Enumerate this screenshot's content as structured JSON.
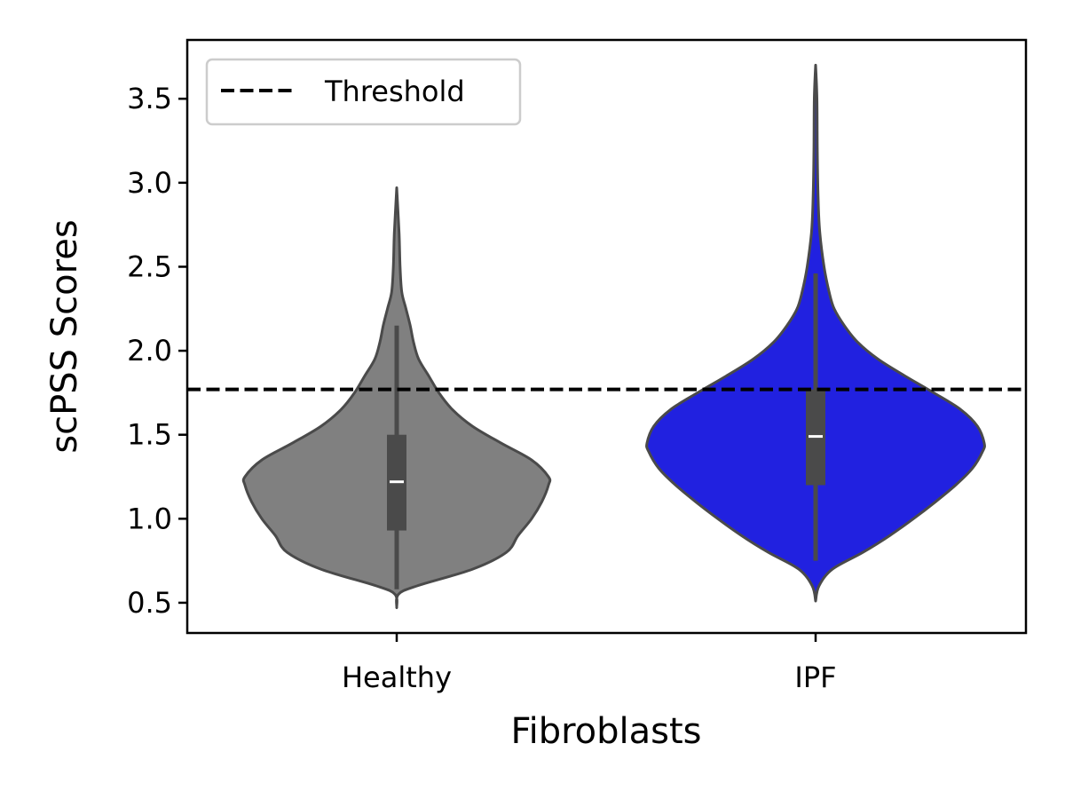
{
  "chart_data": {
    "type": "violin",
    "xlabel": "Fibroblasts",
    "ylabel": "scPSS Scores",
    "categories": [
      "Healthy",
      "IPF"
    ],
    "ylim": [
      0.32,
      3.85
    ],
    "yticks": [
      0.5,
      1.0,
      1.5,
      2.0,
      2.5,
      3.0,
      3.5
    ],
    "ytick_labels": [
      "0.5",
      "1.0",
      "1.5",
      "2.0",
      "2.5",
      "3.0",
      "3.5"
    ],
    "threshold": 1.77,
    "legend": {
      "label": "Threshold",
      "position": "top-left"
    },
    "grid": false,
    "violins": [
      {
        "category": "Healthy",
        "color": "#808080",
        "min": 0.47,
        "max": 2.97,
        "q1": 0.93,
        "median": 1.22,
        "q3": 1.5,
        "whisker_low": 0.58,
        "whisker_high": 2.15,
        "density": [
          [
            0.47,
            0.0
          ],
          [
            0.55,
            0.01
          ],
          [
            0.6,
            0.12
          ],
          [
            0.7,
            0.45
          ],
          [
            0.8,
            0.65
          ],
          [
            0.9,
            0.72
          ],
          [
            1.0,
            0.8
          ],
          [
            1.1,
            0.86
          ],
          [
            1.2,
            0.9
          ],
          [
            1.25,
            0.9
          ],
          [
            1.35,
            0.8
          ],
          [
            1.45,
            0.62
          ],
          [
            1.55,
            0.45
          ],
          [
            1.65,
            0.33
          ],
          [
            1.75,
            0.25
          ],
          [
            1.85,
            0.19
          ],
          [
            1.95,
            0.13
          ],
          [
            2.05,
            0.1
          ],
          [
            2.15,
            0.08
          ],
          [
            2.25,
            0.055
          ],
          [
            2.35,
            0.03
          ],
          [
            2.5,
            0.02
          ],
          [
            2.7,
            0.014
          ],
          [
            2.97,
            0.0
          ]
        ]
      },
      {
        "category": "IPF",
        "color": "#2121e0",
        "min": 0.51,
        "max": 3.7,
        "q1": 1.2,
        "median": 1.49,
        "q3": 1.77,
        "whisker_low": 0.75,
        "whisker_high": 2.46,
        "density": [
          [
            0.51,
            0.0
          ],
          [
            0.6,
            0.02
          ],
          [
            0.7,
            0.1
          ],
          [
            0.8,
            0.28
          ],
          [
            0.9,
            0.44
          ],
          [
            1.0,
            0.58
          ],
          [
            1.1,
            0.71
          ],
          [
            1.2,
            0.83
          ],
          [
            1.3,
            0.93
          ],
          [
            1.4,
            0.99
          ],
          [
            1.45,
            1.0
          ],
          [
            1.55,
            0.96
          ],
          [
            1.65,
            0.86
          ],
          [
            1.75,
            0.7
          ],
          [
            1.85,
            0.53
          ],
          [
            1.95,
            0.37
          ],
          [
            2.05,
            0.25
          ],
          [
            2.15,
            0.17
          ],
          [
            2.25,
            0.11
          ],
          [
            2.35,
            0.08
          ],
          [
            2.5,
            0.05
          ],
          [
            2.7,
            0.025
          ],
          [
            2.9,
            0.015
          ],
          [
            3.2,
            0.01
          ],
          [
            3.5,
            0.008
          ],
          [
            3.7,
            0.0
          ]
        ]
      }
    ]
  }
}
